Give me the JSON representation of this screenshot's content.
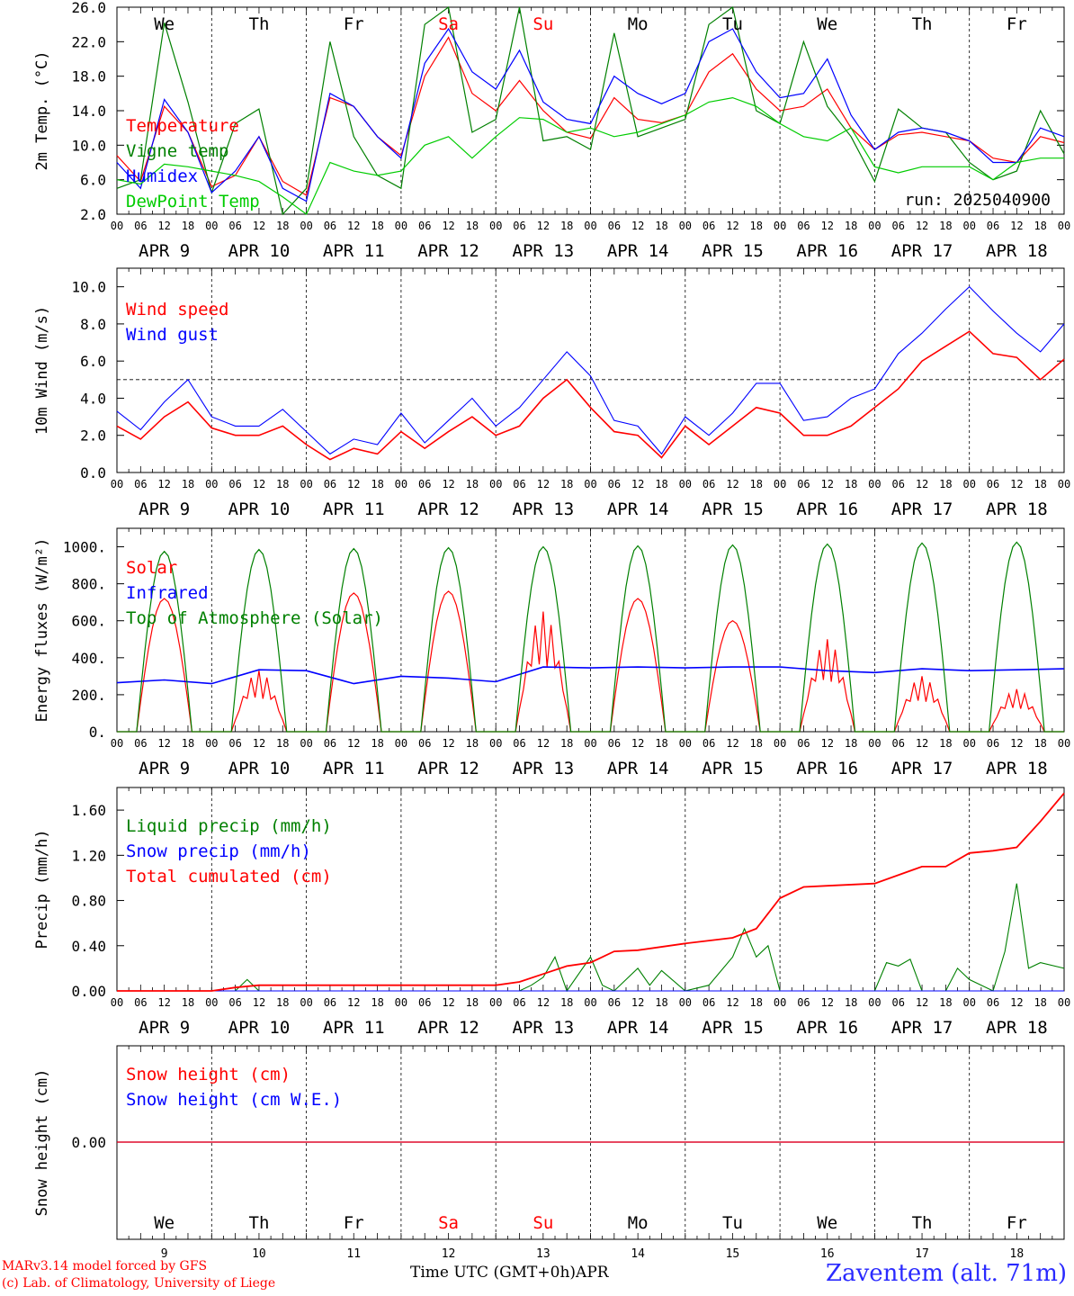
{
  "run_label": "run: 2025040900",
  "footer": {
    "model_line1": "MARv3.14 model forced by GFS",
    "model_line2": "(c) Lab. of Climatology, University of Liege",
    "axis_title": "Time UTC (GMT+0h)",
    "axis_month": "APR",
    "station": "Zaventem (alt. 71m)"
  },
  "colors": {
    "red": "#ff0000",
    "blue": "#0000ff",
    "green": "#008000",
    "lightgreen": "#00cc00",
    "weekend": "#ff0000"
  },
  "days": {
    "names": [
      "We",
      "Th",
      "Fr",
      "Sa",
      "Su",
      "Mo",
      "Tu",
      "We",
      "Th",
      "Fr"
    ],
    "weekend": [
      false,
      false,
      false,
      true,
      true,
      false,
      false,
      false,
      false,
      false
    ],
    "dates": [
      "APR 9",
      "APR 10",
      "APR 11",
      "APR 12",
      "APR 13",
      "APR 14",
      "APR 15",
      "APR 16",
      "APR 17",
      "APR 18"
    ],
    "numbers": [
      "9",
      "10",
      "11",
      "12",
      "13",
      "14",
      "15",
      "16",
      "17",
      "18"
    ],
    "hour_ticks": [
      "00",
      "06",
      "12",
      "18"
    ],
    "end_tick": "00"
  },
  "chart_data": [
    {
      "type": "line",
      "ylabel": "2m Temp. (°C)",
      "ylim": [
        2,
        26
      ],
      "yticks": [
        "2.0",
        "6.0",
        "10.0",
        "14.0",
        "18.0",
        "22.0",
        "26.0"
      ],
      "x_hours": [
        0,
        6,
        12,
        18,
        24,
        30,
        36,
        42,
        48,
        54,
        60,
        66,
        72,
        78,
        84,
        90,
        96,
        102,
        108,
        114,
        120,
        126,
        132,
        138,
        144,
        150,
        156,
        162,
        168,
        174,
        180,
        186,
        192,
        198,
        204,
        210,
        216,
        222,
        228,
        234,
        240
      ],
      "series": [
        {
          "name": "Temperature",
          "color": "red",
          "values": [
            8.8,
            5.8,
            14.5,
            11.5,
            5.2,
            6.5,
            11.0,
            5.8,
            4.2,
            15.5,
            14.5,
            11.0,
            8.8,
            18.0,
            22.5,
            16.0,
            14.0,
            17.5,
            14.0,
            11.5,
            10.8,
            15.5,
            13.0,
            12.6,
            13.5,
            18.5,
            20.6,
            16.5,
            14.0,
            14.5,
            16.5,
            12.0,
            9.5,
            11.2,
            11.5,
            11.0,
            10.5,
            8.5,
            8.0,
            11.0,
            10.3
          ]
        },
        {
          "name": "Vigne temp",
          "color": "green",
          "values": [
            5.0,
            6.0,
            24.2,
            15.0,
            4.5,
            12.5,
            14.2,
            2.0,
            5.0,
            22.0,
            11.0,
            6.5,
            5.0,
            24.0,
            26.0,
            11.5,
            13.0,
            26.0,
            10.5,
            11.0,
            9.5,
            23.0,
            11.0,
            12.0,
            13.0,
            24.0,
            26.0,
            14.0,
            12.5,
            22.0,
            14.5,
            11.0,
            5.8,
            14.2,
            12.0,
            11.5,
            8.0,
            6.0,
            7.0,
            14.0,
            9.0
          ]
        },
        {
          "name": "Humidex",
          "color": "blue",
          "values": [
            8.0,
            5.0,
            15.3,
            11.5,
            4.5,
            7.0,
            11.0,
            5.0,
            3.5,
            16.0,
            14.5,
            11.0,
            8.5,
            19.5,
            23.5,
            18.5,
            16.5,
            21.0,
            15.0,
            13.0,
            12.5,
            18.0,
            16.0,
            14.8,
            16.0,
            22.0,
            23.5,
            18.5,
            15.5,
            16.0,
            20.0,
            13.5,
            9.5,
            11.5,
            12.0,
            11.5,
            10.5,
            8.0,
            8.0,
            12.0,
            11.0
          ]
        },
        {
          "name": "DewPoint Temp",
          "color": "lightgreen",
          "values": [
            6.0,
            5.5,
            7.8,
            7.5,
            7.0,
            6.5,
            5.8,
            4.0,
            2.0,
            8.0,
            7.0,
            6.5,
            7.0,
            10.0,
            11.0,
            8.5,
            11.0,
            13.2,
            13.0,
            11.5,
            12.0,
            11.0,
            11.5,
            12.5,
            13.5,
            15.0,
            15.5,
            14.5,
            12.5,
            11.0,
            10.5,
            12.0,
            7.5,
            6.8,
            7.5,
            7.5,
            7.5,
            6.0,
            8.0,
            8.5,
            8.5
          ]
        }
      ]
    },
    {
      "type": "line",
      "ylabel": "10m Wind (m/s)",
      "ylim": [
        0,
        11
      ],
      "yticks": [
        "0.0",
        "2.0",
        "4.0",
        "6.0",
        "8.0",
        "10.0"
      ],
      "reference_line": 5.0,
      "x_hours": [
        0,
        6,
        12,
        18,
        24,
        30,
        36,
        42,
        48,
        54,
        60,
        66,
        72,
        78,
        84,
        90,
        96,
        102,
        108,
        114,
        120,
        126,
        132,
        138,
        144,
        150,
        156,
        162,
        168,
        174,
        180,
        186,
        192,
        198,
        204,
        210,
        216,
        222,
        228,
        234,
        240
      ],
      "series": [
        {
          "name": "Wind speed",
          "color": "red",
          "values": [
            2.5,
            1.8,
            3.0,
            3.8,
            2.4,
            2.0,
            2.0,
            2.5,
            1.5,
            0.7,
            1.3,
            1.0,
            2.2,
            1.3,
            2.2,
            3.0,
            2.0,
            2.5,
            4.0,
            5.0,
            3.5,
            2.2,
            2.0,
            0.8,
            2.5,
            1.5,
            2.5,
            3.5,
            3.2,
            2.0,
            2.0,
            2.5,
            3.5,
            4.5,
            6.0,
            6.8,
            7.6,
            6.4,
            6.2,
            5.0,
            6.1
          ]
        },
        {
          "name": "Wind gust",
          "color": "blue",
          "values": [
            3.3,
            2.3,
            3.8,
            5.0,
            3.0,
            2.5,
            2.5,
            3.4,
            2.2,
            1.0,
            1.8,
            1.5,
            3.2,
            1.6,
            2.8,
            4.0,
            2.5,
            3.5,
            5.0,
            6.5,
            5.2,
            2.8,
            2.5,
            1.0,
            3.0,
            2.0,
            3.2,
            4.8,
            4.8,
            2.8,
            3.0,
            4.0,
            4.5,
            6.4,
            7.5,
            8.8,
            10.0,
            8.7,
            7.5,
            6.5,
            8.0
          ]
        }
      ]
    },
    {
      "type": "line",
      "ylabel": "Energy fluxes (W/m²)",
      "ylim": [
        0,
        1100
      ],
      "yticks": [
        "0.",
        "200.",
        "400.",
        "600.",
        "800.",
        "1000."
      ],
      "series": [
        {
          "name": "Solar",
          "color": "red",
          "peaks": [
            720,
            330,
            750,
            760,
            650,
            720,
            600,
            500,
            300,
            230
          ],
          "shape": [
            1.0,
            0.6,
            1.0,
            1.0,
            0.75,
            0.95,
            0.9,
            0.5,
            0.6,
            0.5
          ]
        },
        {
          "name": "Infrared",
          "color": "blue",
          "x_hours": [
            0,
            12,
            24,
            36,
            48,
            60,
            72,
            84,
            96,
            108,
            120,
            132,
            144,
            156,
            168,
            180,
            192,
            204,
            216,
            228,
            240
          ],
          "values": [
            265,
            280,
            260,
            335,
            330,
            260,
            300,
            290,
            270,
            350,
            345,
            350,
            345,
            350,
            350,
            330,
            320,
            340,
            330,
            335,
            340
          ]
        },
        {
          "name": "Top of Atmosphere (Solar)",
          "color": "green",
          "peaks": [
            975,
            985,
            990,
            995,
            1000,
            1005,
            1010,
            1015,
            1020,
            1025
          ],
          "shape": [
            1,
            1,
            1,
            1,
            1,
            1,
            1,
            1,
            1,
            1
          ]
        }
      ]
    },
    {
      "type": "line",
      "ylabel": "Precip (mm/h)",
      "ylim": [
        0,
        1.8
      ],
      "yticks": [
        "0.00",
        "0.40",
        "0.80",
        "1.20",
        "1.60"
      ],
      "x_hours": [
        0,
        24,
        30,
        36,
        96,
        102,
        108,
        114,
        120,
        132,
        144,
        156,
        168,
        174,
        192,
        204,
        216,
        222,
        228,
        234,
        240
      ],
      "series": [
        {
          "name": "Liquid precip (mm/h)",
          "color": "green",
          "x_hours": [
            0,
            30,
            33,
            36,
            60,
            102,
            105,
            108,
            111,
            114,
            117,
            120,
            123,
            126,
            132,
            135,
            138,
            144,
            150,
            156,
            159,
            162,
            165,
            168,
            192,
            195,
            198,
            201,
            204,
            210,
            213,
            216,
            222,
            225,
            228,
            231,
            234,
            240
          ],
          "values": [
            0,
            0,
            0.1,
            0,
            0,
            0,
            0.05,
            0.12,
            0.3,
            0,
            0.15,
            0.3,
            0.05,
            0,
            0.2,
            0.05,
            0.18,
            0,
            0.05,
            0.3,
            0.55,
            0.3,
            0.4,
            0,
            0,
            0.25,
            0.22,
            0.28,
            0,
            0,
            0.2,
            0.1,
            0,
            0.35,
            0.95,
            0.2,
            0.25,
            0.2
          ]
        },
        {
          "name": "Snow precip (mm/h)",
          "color": "blue",
          "x_hours": [
            0,
            240
          ],
          "values": [
            0,
            0
          ]
        },
        {
          "name": "Total cumulated (cm)",
          "color": "red",
          "x_hours": [
            0,
            24,
            30,
            36,
            96,
            102,
            108,
            114,
            120,
            126,
            132,
            144,
            156,
            162,
            168,
            174,
            180,
            192,
            204,
            210,
            216,
            222,
            228,
            234,
            240
          ],
          "values": [
            0,
            0,
            0.03,
            0.05,
            0.05,
            0.08,
            0.15,
            0.22,
            0.25,
            0.35,
            0.36,
            0.42,
            0.47,
            0.55,
            0.82,
            0.92,
            0.93,
            0.95,
            1.1,
            1.1,
            1.22,
            1.24,
            1.27,
            1.5,
            1.75
          ]
        }
      ]
    },
    {
      "type": "line",
      "ylabel": "Snow height (cm)",
      "yticks": [
        "0.00"
      ],
      "series": [
        {
          "name": "Snow height (cm)",
          "color": "red",
          "x_hours": [
            0,
            240
          ],
          "values": [
            0,
            0
          ]
        },
        {
          "name": "Snow height (cm W.E.)",
          "color": "blue",
          "x_hours": [
            0,
            240
          ],
          "values": [
            0,
            0
          ]
        }
      ]
    }
  ]
}
